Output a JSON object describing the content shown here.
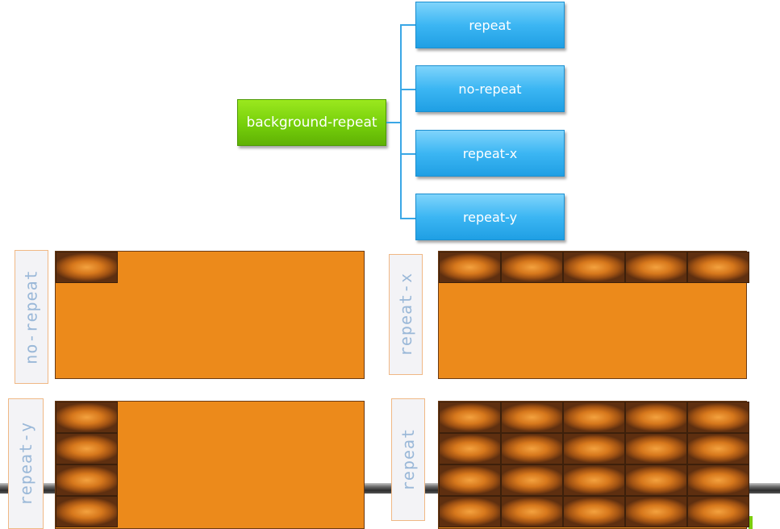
{
  "diagram": {
    "root": {
      "label": "background-repeat"
    },
    "children": [
      {
        "label": "repeat"
      },
      {
        "label": "no-repeat"
      },
      {
        "label": "repeat-x"
      },
      {
        "label": "repeat-y"
      }
    ]
  },
  "panels": {
    "no_repeat": {
      "label": "no-repeat",
      "tile_cols": 1,
      "tile_rows": 1
    },
    "repeat_x": {
      "label": "repeat-x",
      "tile_cols": 5,
      "tile_rows": 1
    },
    "repeat_y": {
      "label": "repeat-y",
      "tile_cols": 1,
      "tile_rows": 4
    },
    "repeat": {
      "label": "repeat",
      "tile_cols": 5,
      "tile_rows": 4
    }
  },
  "colors": {
    "root_node": "#76cf0b",
    "child_node": "#3cb6f3",
    "panel_fill": "#ec8a1b",
    "tile": "#a05213",
    "label_text": "#9ab8d8"
  }
}
